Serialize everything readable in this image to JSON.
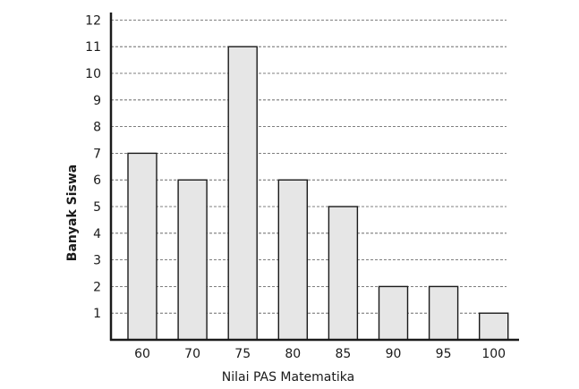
{
  "chart_data": {
    "type": "bar",
    "title": "",
    "xlabel": "Nilai PAS Matematika",
    "ylabel": "Banyak Siswa",
    "categories": [
      "60",
      "70",
      "75",
      "80",
      "85",
      "90",
      "95",
      "100"
    ],
    "values": [
      7,
      6,
      11,
      6,
      5,
      2,
      2,
      1
    ],
    "yticks": [
      "1",
      "2",
      "3",
      "4",
      "5",
      "6",
      "7",
      "8",
      "9",
      "10",
      "11",
      "12"
    ],
    "ylim": [
      0,
      12
    ],
    "grid": "horizontal-dashed",
    "colors": {
      "bar_fill": "#e6e6e6",
      "bar_stroke": "#1a1a1a",
      "axis": "#1a1a1a",
      "grid": "#555555"
    }
  }
}
